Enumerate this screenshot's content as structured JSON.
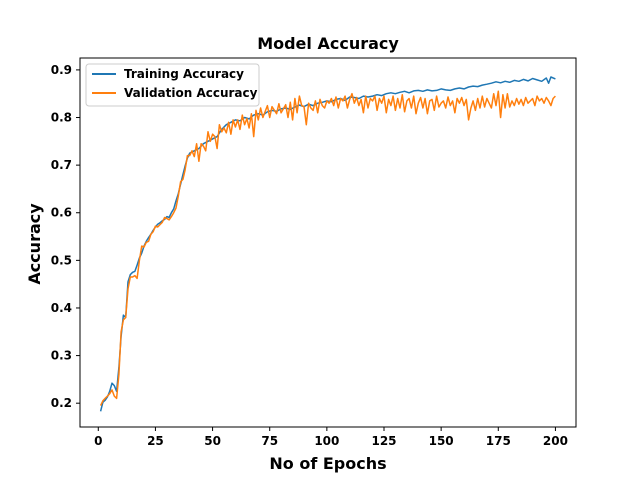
{
  "chart_data": {
    "type": "line",
    "title": "Model Accuracy",
    "xlabel": "No of Epochs",
    "ylabel": "Accuracy",
    "xlim": [
      -8,
      209
    ],
    "ylim": [
      0.15,
      0.925
    ],
    "xticks": [
      0,
      25,
      50,
      75,
      100,
      125,
      150,
      175,
      200
    ],
    "yticks": [
      0.2,
      0.3,
      0.4,
      0.5,
      0.6,
      0.7,
      0.8,
      0.9
    ],
    "grid": false,
    "legend": "top-left",
    "series": [
      {
        "name": "Training Accuracy",
        "color": "#1f77b4",
        "points": [
          [
            1,
            0.183
          ],
          [
            2,
            0.202
          ],
          [
            3,
            0.206
          ],
          [
            4,
            0.213
          ],
          [
            5,
            0.225
          ],
          [
            6,
            0.242
          ],
          [
            7,
            0.237
          ],
          [
            8,
            0.225
          ],
          [
            9,
            0.275
          ],
          [
            10,
            0.34
          ],
          [
            11,
            0.385
          ],
          [
            12,
            0.38
          ],
          [
            13,
            0.455
          ],
          [
            14,
            0.47
          ],
          [
            15,
            0.475
          ],
          [
            16,
            0.477
          ],
          [
            17,
            0.49
          ],
          [
            18,
            0.505
          ],
          [
            19,
            0.515
          ],
          [
            20,
            0.53
          ],
          [
            21,
            0.54
          ],
          [
            22,
            0.548
          ],
          [
            23,
            0.555
          ],
          [
            24,
            0.563
          ],
          [
            25,
            0.57
          ],
          [
            26,
            0.576
          ],
          [
            27,
            0.579
          ],
          [
            28,
            0.583
          ],
          [
            29,
            0.586
          ],
          [
            30,
            0.592
          ],
          [
            31,
            0.59
          ],
          [
            32,
            0.6
          ],
          [
            33,
            0.608
          ],
          [
            34,
            0.625
          ],
          [
            35,
            0.64
          ],
          [
            36,
            0.66
          ],
          [
            37,
            0.68
          ],
          [
            38,
            0.698
          ],
          [
            39,
            0.715
          ],
          [
            40,
            0.725
          ],
          [
            42,
            0.73
          ],
          [
            44,
            0.735
          ],
          [
            46,
            0.745
          ],
          [
            48,
            0.75
          ],
          [
            50,
            0.755
          ],
          [
            52,
            0.76
          ],
          [
            54,
            0.775
          ],
          [
            56,
            0.785
          ],
          [
            58,
            0.79
          ],
          [
            60,
            0.795
          ],
          [
            62,
            0.793
          ],
          [
            64,
            0.8
          ],
          [
            66,
            0.797
          ],
          [
            68,
            0.805
          ],
          [
            70,
            0.808
          ],
          [
            72,
            0.805
          ],
          [
            74,
            0.812
          ],
          [
            76,
            0.815
          ],
          [
            78,
            0.813
          ],
          [
            80,
            0.818
          ],
          [
            82,
            0.82
          ],
          [
            84,
            0.817
          ],
          [
            86,
            0.822
          ],
          [
            88,
            0.826
          ],
          [
            90,
            0.823
          ],
          [
            92,
            0.828
          ],
          [
            94,
            0.825
          ],
          [
            96,
            0.83
          ],
          [
            98,
            0.832
          ],
          [
            100,
            0.835
          ],
          [
            102,
            0.833
          ],
          [
            104,
            0.838
          ],
          [
            106,
            0.84
          ],
          [
            108,
            0.836
          ],
          [
            110,
            0.843
          ],
          [
            112,
            0.842
          ],
          [
            114,
            0.84
          ],
          [
            116,
            0.845
          ],
          [
            118,
            0.843
          ],
          [
            120,
            0.845
          ],
          [
            122,
            0.848
          ],
          [
            124,
            0.846
          ],
          [
            126,
            0.85
          ],
          [
            128,
            0.852
          ],
          [
            130,
            0.85
          ],
          [
            132,
            0.853
          ],
          [
            134,
            0.855
          ],
          [
            136,
            0.852
          ],
          [
            138,
            0.856
          ],
          [
            140,
            0.857
          ],
          [
            142,
            0.855
          ],
          [
            144,
            0.858
          ],
          [
            146,
            0.856
          ],
          [
            148,
            0.857
          ],
          [
            150,
            0.86
          ],
          [
            152,
            0.858
          ],
          [
            154,
            0.857
          ],
          [
            156,
            0.86
          ],
          [
            158,
            0.862
          ],
          [
            160,
            0.86
          ],
          [
            162,
            0.864
          ],
          [
            164,
            0.866
          ],
          [
            166,
            0.865
          ],
          [
            168,
            0.868
          ],
          [
            170,
            0.87
          ],
          [
            172,
            0.872
          ],
          [
            174,
            0.875
          ],
          [
            176,
            0.873
          ],
          [
            178,
            0.876
          ],
          [
            180,
            0.874
          ],
          [
            182,
            0.878
          ],
          [
            184,
            0.876
          ],
          [
            186,
            0.88
          ],
          [
            188,
            0.877
          ],
          [
            190,
            0.882
          ],
          [
            192,
            0.879
          ],
          [
            194,
            0.876
          ],
          [
            196,
            0.883
          ],
          [
            197,
            0.872
          ],
          [
            198,
            0.885
          ],
          [
            200,
            0.881
          ]
        ]
      },
      {
        "name": "Validation Accuracy",
        "color": "#ff7f0e",
        "points": [
          [
            1,
            0.195
          ],
          [
            2,
            0.205
          ],
          [
            3,
            0.21
          ],
          [
            4,
            0.215
          ],
          [
            5,
            0.22
          ],
          [
            6,
            0.228
          ],
          [
            7,
            0.215
          ],
          [
            8,
            0.21
          ],
          [
            9,
            0.26
          ],
          [
            10,
            0.35
          ],
          [
            11,
            0.375
          ],
          [
            12,
            0.38
          ],
          [
            13,
            0.44
          ],
          [
            14,
            0.465
          ],
          [
            15,
            0.465
          ],
          [
            16,
            0.468
          ],
          [
            17,
            0.462
          ],
          [
            18,
            0.5
          ],
          [
            19,
            0.53
          ],
          [
            20,
            0.528
          ],
          [
            21,
            0.538
          ],
          [
            22,
            0.54
          ],
          [
            23,
            0.555
          ],
          [
            24,
            0.56
          ],
          [
            25,
            0.572
          ],
          [
            26,
            0.57
          ],
          [
            27,
            0.575
          ],
          [
            28,
            0.58
          ],
          [
            29,
            0.59
          ],
          [
            30,
            0.588
          ],
          [
            31,
            0.585
          ],
          [
            32,
            0.592
          ],
          [
            33,
            0.6
          ],
          [
            34,
            0.61
          ],
          [
            35,
            0.635
          ],
          [
            36,
            0.665
          ],
          [
            37,
            0.67
          ],
          [
            38,
            0.69
          ],
          [
            39,
            0.72
          ],
          [
            40,
            0.72
          ],
          [
            41,
            0.73
          ],
          [
            42,
            0.718
          ],
          [
            43,
            0.745
          ],
          [
            44,
            0.708
          ],
          [
            45,
            0.745
          ],
          [
            46,
            0.74
          ],
          [
            47,
            0.73
          ],
          [
            48,
            0.77
          ],
          [
            49,
            0.75
          ],
          [
            50,
            0.765
          ],
          [
            51,
            0.76
          ],
          [
            52,
            0.735
          ],
          [
            53,
            0.785
          ],
          [
            54,
            0.77
          ],
          [
            55,
            0.778
          ],
          [
            56,
            0.768
          ],
          [
            57,
            0.79
          ],
          [
            58,
            0.765
          ],
          [
            59,
            0.795
          ],
          [
            60,
            0.78
          ],
          [
            61,
            0.795
          ],
          [
            62,
            0.775
          ],
          [
            63,
            0.805
          ],
          [
            64,
            0.785
          ],
          [
            65,
            0.798
          ],
          [
            66,
            0.778
          ],
          [
            67,
            0.808
          ],
          [
            68,
            0.76
          ],
          [
            69,
            0.815
          ],
          [
            70,
            0.795
          ],
          [
            71,
            0.82
          ],
          [
            72,
            0.8
          ],
          [
            74,
            0.825
          ],
          [
            75,
            0.8
          ],
          [
            76,
            0.823
          ],
          [
            78,
            0.808
          ],
          [
            79,
            0.829
          ],
          [
            80,
            0.81
          ],
          [
            82,
            0.827
          ],
          [
            83,
            0.8
          ],
          [
            84,
            0.832
          ],
          [
            85,
            0.795
          ],
          [
            86,
            0.84
          ],
          [
            87,
            0.81
          ],
          [
            88,
            0.845
          ],
          [
            89,
            0.825
          ],
          [
            90,
            0.823
          ],
          [
            91,
            0.785
          ],
          [
            92,
            0.83
          ],
          [
            93,
            0.82
          ],
          [
            94,
            0.815
          ],
          [
            95,
            0.835
          ],
          [
            96,
            0.81
          ],
          [
            97,
            0.838
          ],
          [
            98,
            0.825
          ],
          [
            99,
            0.82
          ],
          [
            100,
            0.835
          ],
          [
            101,
            0.83
          ],
          [
            102,
            0.84
          ],
          [
            103,
            0.825
          ],
          [
            104,
            0.843
          ],
          [
            105,
            0.82
          ],
          [
            106,
            0.84
          ],
          [
            107,
            0.835
          ],
          [
            108,
            0.845
          ],
          [
            109,
            0.82
          ],
          [
            110,
            0.838
          ],
          [
            111,
            0.85
          ],
          [
            112,
            0.83
          ],
          [
            113,
            0.842
          ],
          [
            114,
            0.825
          ],
          [
            115,
            0.838
          ],
          [
            116,
            0.81
          ],
          [
            117,
            0.845
          ],
          [
            118,
            0.82
          ],
          [
            119,
            0.84
          ],
          [
            120,
            0.835
          ],
          [
            121,
            0.845
          ],
          [
            122,
            0.815
          ],
          [
            123,
            0.84
          ],
          [
            124,
            0.83
          ],
          [
            125,
            0.845
          ],
          [
            126,
            0.81
          ],
          [
            127,
            0.838
          ],
          [
            128,
            0.825
          ],
          [
            129,
            0.845
          ],
          [
            130,
            0.815
          ],
          [
            131,
            0.84
          ],
          [
            132,
            0.82
          ],
          [
            133,
            0.848
          ],
          [
            134,
            0.812
          ],
          [
            135,
            0.835
          ],
          [
            136,
            0.84
          ],
          [
            137,
            0.82
          ],
          [
            138,
            0.845
          ],
          [
            139,
            0.808
          ],
          [
            140,
            0.83
          ],
          [
            141,
            0.842
          ],
          [
            142,
            0.82
          ],
          [
            143,
            0.84
          ],
          [
            144,
            0.808
          ],
          [
            145,
            0.835
          ],
          [
            146,
            0.838
          ],
          [
            147,
            0.815
          ],
          [
            148,
            0.845
          ],
          [
            149,
            0.822
          ],
          [
            150,
            0.83
          ],
          [
            151,
            0.835
          ],
          [
            152,
            0.82
          ],
          [
            153,
            0.843
          ],
          [
            154,
            0.825
          ],
          [
            155,
            0.835
          ],
          [
            156,
            0.81
          ],
          [
            157,
            0.84
          ],
          [
            158,
            0.83
          ],
          [
            159,
            0.842
          ],
          [
            160,
            0.825
          ],
          [
            161,
            0.838
          ],
          [
            162,
            0.795
          ],
          [
            163,
            0.82
          ],
          [
            164,
            0.835
          ],
          [
            165,
            0.815
          ],
          [
            166,
            0.84
          ],
          [
            167,
            0.82
          ],
          [
            168,
            0.845
          ],
          [
            169,
            0.822
          ],
          [
            170,
            0.84
          ],
          [
            171,
            0.83
          ],
          [
            172,
            0.82
          ],
          [
            173,
            0.85
          ],
          [
            174,
            0.825
          ],
          [
            175,
            0.855
          ],
          [
            176,
            0.8
          ],
          [
            177,
            0.848
          ],
          [
            178,
            0.82
          ],
          [
            179,
            0.85
          ],
          [
            180,
            0.822
          ],
          [
            181,
            0.835
          ],
          [
            182,
            0.825
          ],
          [
            183,
            0.84
          ],
          [
            184,
            0.828
          ],
          [
            185,
            0.838
          ],
          [
            186,
            0.825
          ],
          [
            187,
            0.842
          ],
          [
            188,
            0.83
          ],
          [
            189,
            0.835
          ],
          [
            190,
            0.84
          ],
          [
            191,
            0.825
          ],
          [
            192,
            0.845
          ],
          [
            193,
            0.835
          ],
          [
            194,
            0.84
          ],
          [
            195,
            0.83
          ],
          [
            196,
            0.842
          ],
          [
            197,
            0.835
          ],
          [
            198,
            0.825
          ],
          [
            199,
            0.84
          ],
          [
            200,
            0.845
          ]
        ]
      }
    ]
  }
}
